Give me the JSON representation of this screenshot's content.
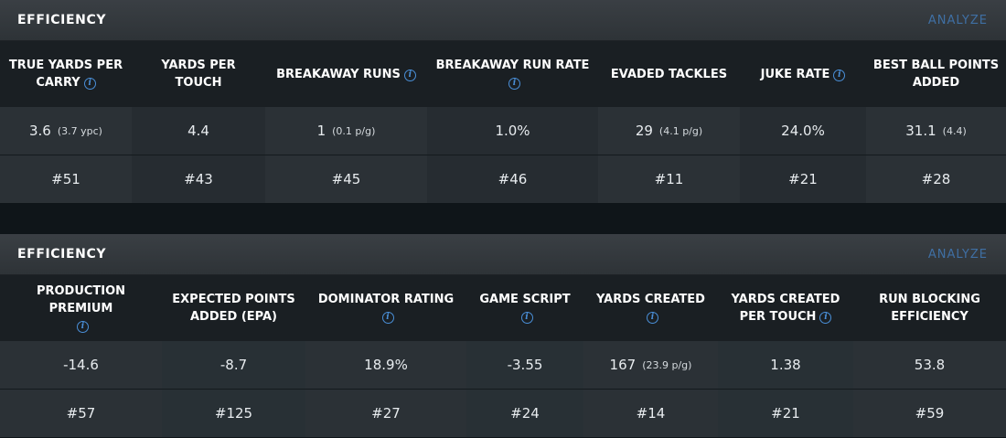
{
  "panels": [
    {
      "title": "EFFICIENCY",
      "analyze_label": "ANALYZE",
      "columns": [
        {
          "label": "TRUE YARDS PER CARRY",
          "info": true,
          "value": "3.6",
          "sub": "(3.7 ypc)",
          "rank": "#51"
        },
        {
          "label": "YARDS PER TOUCH",
          "info": false,
          "value": "4.4",
          "sub": "",
          "rank": "#43"
        },
        {
          "label": "BREAKAWAY RUNS",
          "info": true,
          "value": "1",
          "sub": "(0.1 p/g)",
          "rank": "#45"
        },
        {
          "label": "BREAKAWAY RUN RATE",
          "info": true,
          "value": "1.0%",
          "sub": "",
          "rank": "#46"
        },
        {
          "label": "EVADED TACKLES",
          "info": false,
          "value": "29",
          "sub": "(4.1 p/g)",
          "rank": "#11"
        },
        {
          "label": "JUKE RATE",
          "info": true,
          "value": "24.0%",
          "sub": "",
          "rank": "#21"
        },
        {
          "label": "BEST BALL POINTS ADDED",
          "info": false,
          "value": "31.1",
          "sub": "(4.4)",
          "rank": "#28"
        }
      ]
    },
    {
      "title": "EFFICIENCY",
      "analyze_label": "ANALYZE",
      "columns": [
        {
          "label": "PRODUCTION PREMIUM",
          "info": true,
          "value": "-14.6",
          "sub": "",
          "rank": "#57"
        },
        {
          "label": "EXPECTED POINTS ADDED (EPA)",
          "info": false,
          "value": "-8.7",
          "sub": "",
          "rank": "#125"
        },
        {
          "label": "DOMINATOR RATING",
          "info": true,
          "value": "18.9%",
          "sub": "",
          "rank": "#27"
        },
        {
          "label": "GAME SCRIPT",
          "info": true,
          "value": "-3.55",
          "sub": "",
          "rank": "#24"
        },
        {
          "label": "YARDS CREATED",
          "info": true,
          "value": "167",
          "sub": "(23.9 p/g)",
          "rank": "#14"
        },
        {
          "label": "YARDS CREATED PER TOUCH",
          "info": true,
          "value": "1.38",
          "sub": "",
          "rank": "#21"
        },
        {
          "label": "RUN BLOCKING EFFICIENCY",
          "info": false,
          "value": "53.8",
          "sub": "",
          "rank": "#59"
        }
      ]
    }
  ],
  "icons": {
    "info": "info-icon",
    "info_glyph": "i"
  },
  "colors": {
    "accent": "#4a8fd8",
    "analyze": "#3f6fa3",
    "header_bg": "#1a1f23"
  }
}
